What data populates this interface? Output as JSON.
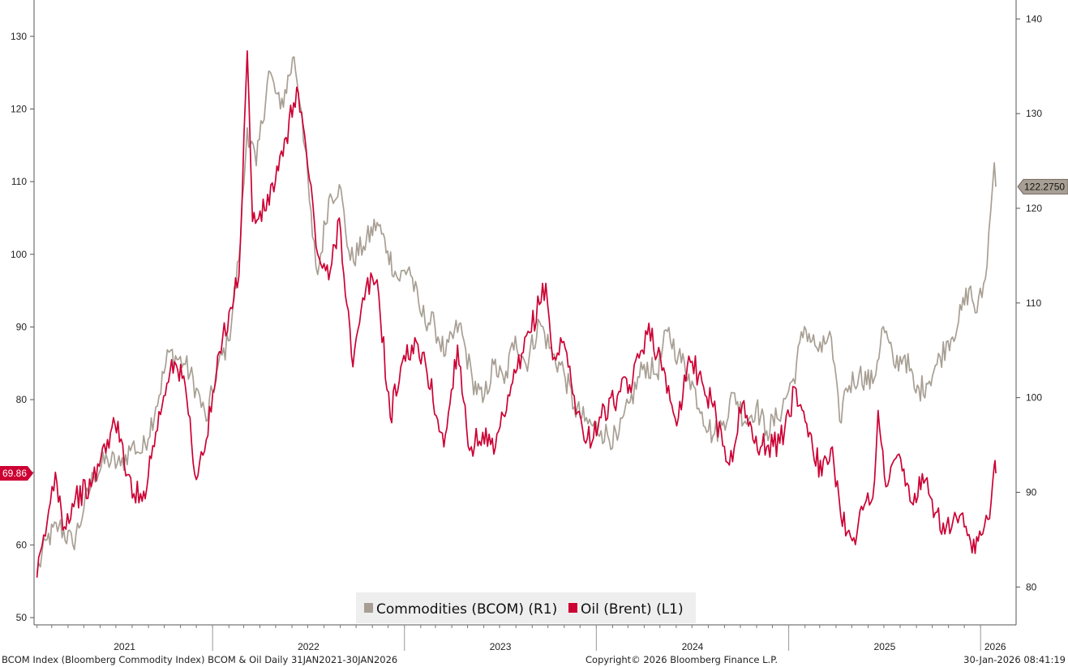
{
  "chart_data": {
    "type": "line",
    "x_range": [
      "2021-01-31",
      "2026-01-30"
    ],
    "x_tick_labels": [
      "2021",
      "2022",
      "2023",
      "2024",
      "2025",
      "2026"
    ],
    "left_axis": {
      "ticks": [
        50,
        60,
        70,
        80,
        90,
        100,
        110,
        120,
        130
      ],
      "ylim": [
        49,
        135
      ]
    },
    "right_axis": {
      "ticks": [
        80,
        90,
        100,
        110,
        120,
        130,
        140
      ],
      "ylim": [
        76,
        142
      ]
    },
    "grid": false,
    "legend_position": "bottom-center",
    "series": [
      {
        "name": "Commodities (BCOM) (R1)",
        "axis": "right",
        "color": "#a89f94",
        "last_value_label": "122.2750",
        "points": [
          [
            "2021-02-01",
            81.5
          ],
          [
            "2021-02-20",
            85.0
          ],
          [
            "2021-03-15",
            86.5
          ],
          [
            "2021-04-10",
            84.5
          ],
          [
            "2021-05-01",
            88.2
          ],
          [
            "2021-05-20",
            91.8
          ],
          [
            "2021-06-15",
            93.5
          ],
          [
            "2021-07-10",
            92.8
          ],
          [
            "2021-08-01",
            95.0
          ],
          [
            "2021-08-20",
            94.2
          ],
          [
            "2021-09-15",
            99.0
          ],
          [
            "2021-10-10",
            104.8
          ],
          [
            "2021-11-10",
            103.5
          ],
          [
            "2021-12-01",
            101.0
          ],
          [
            "2021-12-20",
            97.5
          ],
          [
            "2022-01-10",
            103.0
          ],
          [
            "2022-01-31",
            106.0
          ],
          [
            "2022-02-20",
            114.5
          ],
          [
            "2022-03-08",
            128.5
          ],
          [
            "2022-03-25",
            124.5
          ],
          [
            "2022-04-18",
            134.5
          ],
          [
            "2022-05-10",
            130.5
          ],
          [
            "2022-06-05",
            136.0
          ],
          [
            "2022-06-20",
            130.0
          ],
          [
            "2022-07-10",
            117.0
          ],
          [
            "2022-07-20",
            113.0
          ],
          [
            "2022-08-10",
            121.0
          ],
          [
            "2022-08-30",
            122.5
          ],
          [
            "2022-09-20",
            114.5
          ],
          [
            "2022-10-15",
            116.0
          ],
          [
            "2022-11-10",
            118.5
          ],
          [
            "2022-11-30",
            115.5
          ],
          [
            "2022-12-20",
            112.5
          ],
          [
            "2023-01-10",
            113.8
          ],
          [
            "2023-01-31",
            109.0
          ],
          [
            "2023-02-28",
            107.5
          ],
          [
            "2023-03-20",
            104.5
          ],
          [
            "2023-04-15",
            107.8
          ],
          [
            "2023-05-10",
            102.0
          ],
          [
            "2023-05-30",
            99.5
          ],
          [
            "2023-06-20",
            103.5
          ],
          [
            "2023-07-10",
            101.5
          ],
          [
            "2023-07-31",
            106.5
          ],
          [
            "2023-08-20",
            103.5
          ],
          [
            "2023-09-15",
            108.0
          ],
          [
            "2023-10-10",
            104.5
          ],
          [
            "2023-10-31",
            102.8
          ],
          [
            "2023-11-20",
            99.0
          ],
          [
            "2023-12-10",
            97.5
          ],
          [
            "2024-01-10",
            96.5
          ],
          [
            "2024-02-10",
            95.5
          ],
          [
            "2024-03-05",
            99.5
          ],
          [
            "2024-04-01",
            103.5
          ],
          [
            "2024-04-25",
            102.5
          ],
          [
            "2024-05-15",
            107.0
          ],
          [
            "2024-06-05",
            104.5
          ],
          [
            "2024-06-25",
            102.5
          ],
          [
            "2024-07-20",
            98.5
          ],
          [
            "2024-08-10",
            96.0
          ],
          [
            "2024-08-30",
            97.5
          ],
          [
            "2024-09-20",
            100.5
          ],
          [
            "2024-10-10",
            97.5
          ],
          [
            "2024-10-31",
            99.0
          ],
          [
            "2024-11-20",
            96.5
          ],
          [
            "2024-12-10",
            97.8
          ],
          [
            "2025-01-10",
            102.0
          ],
          [
            "2025-01-31",
            107.5
          ],
          [
            "2025-02-20",
            105.5
          ],
          [
            "2025-03-05",
            104.8
          ],
          [
            "2025-03-20",
            107.0
          ],
          [
            "2025-04-08",
            97.5
          ],
          [
            "2025-04-20",
            101.0
          ],
          [
            "2025-05-15",
            102.5
          ],
          [
            "2025-06-10",
            101.5
          ],
          [
            "2025-06-30",
            107.5
          ],
          [
            "2025-07-20",
            103.5
          ],
          [
            "2025-08-10",
            104.5
          ],
          [
            "2025-08-31",
            100.5
          ],
          [
            "2025-09-20",
            101.5
          ],
          [
            "2025-10-10",
            103.5
          ],
          [
            "2025-10-31",
            106.0
          ],
          [
            "2025-11-20",
            108.0
          ],
          [
            "2025-12-10",
            111.5
          ],
          [
            "2025-12-25",
            109.0
          ],
          [
            "2026-01-10",
            112.5
          ],
          [
            "2026-01-20",
            119.5
          ],
          [
            "2026-01-27",
            124.8
          ],
          [
            "2026-01-30",
            122.275
          ]
        ]
      },
      {
        "name": "Oil (Brent) (L1)",
        "axis": "left",
        "color": "#cc0033",
        "last_value_label": "69.86",
        "points": [
          [
            "2021-02-01",
            55.5
          ],
          [
            "2021-02-20",
            63.0
          ],
          [
            "2021-03-08",
            70.0
          ],
          [
            "2021-03-25",
            62.5
          ],
          [
            "2021-04-15",
            66.5
          ],
          [
            "2021-05-15",
            68.0
          ],
          [
            "2021-06-15",
            74.5
          ],
          [
            "2021-07-05",
            77.0
          ],
          [
            "2021-07-20",
            69.5
          ],
          [
            "2021-08-20",
            66.0
          ],
          [
            "2021-09-15",
            75.5
          ],
          [
            "2021-10-15",
            85.5
          ],
          [
            "2021-11-10",
            82.0
          ],
          [
            "2021-12-01",
            69.0
          ],
          [
            "2021-12-20",
            74.5
          ],
          [
            "2022-01-20",
            88.5
          ],
          [
            "2022-02-20",
            97.0
          ],
          [
            "2022-03-08",
            128.0
          ],
          [
            "2022-03-18",
            104.5
          ],
          [
            "2022-04-10",
            106.0
          ],
          [
            "2022-05-15",
            113.5
          ],
          [
            "2022-06-10",
            123.0
          ],
          [
            "2022-06-28",
            114.5
          ],
          [
            "2022-07-20",
            100.0
          ],
          [
            "2022-08-10",
            96.5
          ],
          [
            "2022-08-30",
            105.0
          ],
          [
            "2022-09-25",
            84.5
          ],
          [
            "2022-10-20",
            95.5
          ],
          [
            "2022-11-10",
            96.5
          ],
          [
            "2022-12-05",
            77.5
          ],
          [
            "2022-12-25",
            84.5
          ],
          [
            "2023-01-15",
            87.5
          ],
          [
            "2023-02-10",
            85.0
          ],
          [
            "2023-03-17",
            73.5
          ],
          [
            "2023-04-12",
            87.5
          ],
          [
            "2023-05-05",
            73.0
          ],
          [
            "2023-05-30",
            75.5
          ],
          [
            "2023-06-20",
            72.5
          ],
          [
            "2023-07-20",
            80.5
          ],
          [
            "2023-08-15",
            86.5
          ],
          [
            "2023-09-27",
            96.0
          ],
          [
            "2023-10-10",
            85.5
          ],
          [
            "2023-10-31",
            88.0
          ],
          [
            "2023-11-20",
            80.5
          ],
          [
            "2023-12-12",
            74.0
          ],
          [
            "2024-01-10",
            77.5
          ],
          [
            "2024-02-10",
            80.5
          ],
          [
            "2024-03-10",
            82.5
          ],
          [
            "2024-04-10",
            90.5
          ],
          [
            "2024-05-05",
            84.0
          ],
          [
            "2024-06-05",
            77.5
          ],
          [
            "2024-06-25",
            86.0
          ],
          [
            "2024-07-20",
            82.5
          ],
          [
            "2024-08-10",
            79.0
          ],
          [
            "2024-09-10",
            71.0
          ],
          [
            "2024-10-05",
            79.5
          ],
          [
            "2024-10-25",
            74.5
          ],
          [
            "2024-11-20",
            73.5
          ],
          [
            "2024-12-15",
            74.0
          ],
          [
            "2025-01-15",
            81.5
          ],
          [
            "2025-02-10",
            75.5
          ],
          [
            "2025-03-05",
            69.5
          ],
          [
            "2025-03-25",
            73.5
          ],
          [
            "2025-04-10",
            64.0
          ],
          [
            "2025-05-05",
            61.0
          ],
          [
            "2025-05-25",
            65.5
          ],
          [
            "2025-06-10",
            66.5
          ],
          [
            "2025-06-20",
            78.5
          ],
          [
            "2025-07-05",
            68.0
          ],
          [
            "2025-07-30",
            72.5
          ],
          [
            "2025-08-20",
            66.0
          ],
          [
            "2025-09-15",
            68.5
          ],
          [
            "2025-10-10",
            64.5
          ],
          [
            "2025-10-25",
            61.5
          ],
          [
            "2025-11-10",
            63.5
          ],
          [
            "2025-12-01",
            62.5
          ],
          [
            "2025-12-16",
            58.9
          ],
          [
            "2026-01-05",
            61.5
          ],
          [
            "2026-01-15",
            63.5
          ],
          [
            "2026-01-27",
            71.0
          ],
          [
            "2026-01-30",
            69.86
          ]
        ]
      }
    ]
  },
  "legend": {
    "items": [
      {
        "label": "Commodities (BCOM) (R1)",
        "color": "#a89f94"
      },
      {
        "label": "Oil (Brent) (L1)",
        "color": "#cc0033"
      }
    ]
  },
  "footer": {
    "left": "BCOM Index (Bloomberg Commodity Index) BCOM & Oil Daily 31JAN2021-30JAN2026",
    "center": "Copyright© 2026 Bloomberg Finance L.P.",
    "right": "30-Jan-2026 08:41:19"
  }
}
